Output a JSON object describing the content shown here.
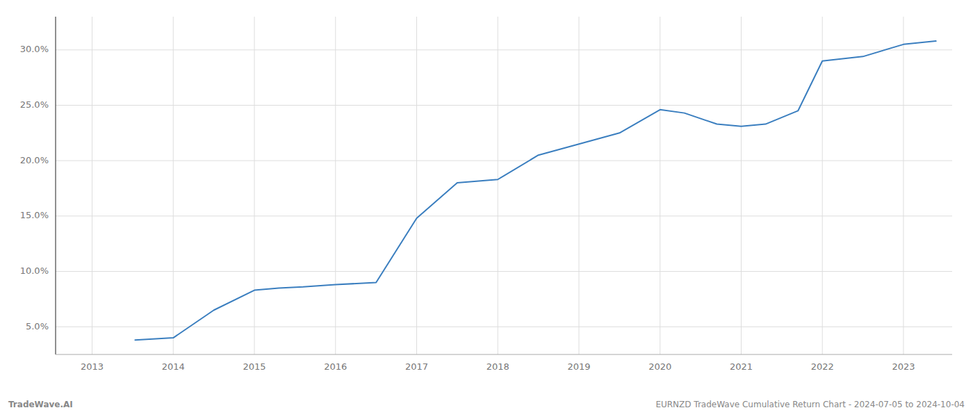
{
  "chart_data": {
    "type": "line",
    "title": "EURNZD TradeWave Cumulative Return Chart - 2024-07-05 to 2024-10-04",
    "annotations": [
      "TradeWave.AI"
    ],
    "x": [
      2013.53,
      2014.0,
      2014.5,
      2015.0,
      2015.3,
      2015.6,
      2016.0,
      2016.5,
      2017.0,
      2017.5,
      2018.0,
      2018.5,
      2019.0,
      2019.5,
      2020.0,
      2020.3,
      2020.7,
      2021.0,
      2021.3,
      2021.7,
      2022.0,
      2022.5,
      2023.0,
      2023.4
    ],
    "values": [
      3.8,
      4.0,
      6.5,
      8.3,
      8.5,
      8.6,
      8.8,
      9.0,
      14.8,
      18.0,
      18.3,
      20.5,
      21.5,
      22.5,
      24.6,
      24.3,
      23.3,
      23.1,
      23.3,
      24.5,
      29.0,
      29.4,
      30.5,
      30.8
    ],
    "color": "#3a7ebf",
    "xlim": [
      2012.55,
      2023.6
    ],
    "ylim": [
      2.5,
      33.0
    ],
    "xticks": [
      2013,
      2014,
      2015,
      2016,
      2017,
      2018,
      2019,
      2020,
      2021,
      2022,
      2023
    ],
    "yticks": [
      {
        "value": 5.0,
        "label": "5.0%"
      },
      {
        "value": 10.0,
        "label": "10.0%"
      },
      {
        "value": 15.0,
        "label": "15.0%"
      },
      {
        "value": 20.0,
        "label": "20.0%"
      },
      {
        "value": 25.0,
        "label": "25.0%"
      },
      {
        "value": 30.0,
        "label": "30.0%"
      }
    ],
    "grid": true
  }
}
